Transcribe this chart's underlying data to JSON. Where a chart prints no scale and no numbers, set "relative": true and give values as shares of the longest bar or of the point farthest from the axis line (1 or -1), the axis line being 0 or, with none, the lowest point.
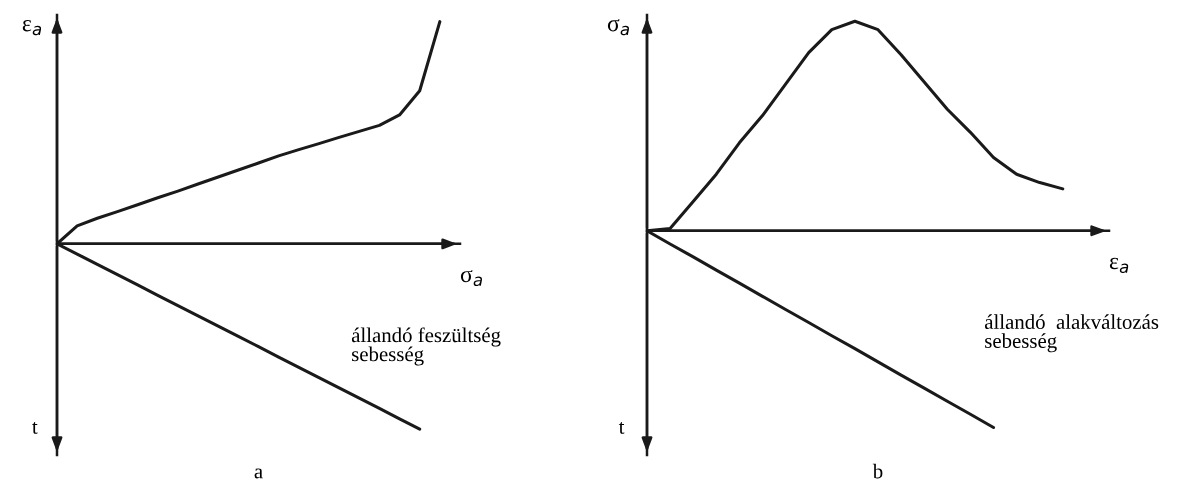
{
  "chart_data": [
    {
      "type": "line",
      "relative": true,
      "title": "a",
      "xlabel": "σ$_{a}$",
      "ylabel": "ε$_{a}$",
      "annotations": [
        "t",
        "állandó feszültség\nsebesség"
      ],
      "categories": [
        null,
        null,
        null,
        null,
        null,
        null,
        null,
        null,
        null,
        null,
        null,
        null,
        null,
        null,
        null,
        null,
        null,
        null,
        null,
        null,
        null
      ],
      "series": [
        {
          "color": "#1a1a1a",
          "values": [
            0,
            0.081,
            0.115,
            0.145,
            0.176,
            0.207,
            0.237,
            0.269,
            0.301,
            0.332,
            0.364,
            0.396,
            0.424,
            0.451,
            0.479,
            0.506,
            0.533,
            0.58,
            0.689,
            1,
            null
          ]
        },
        {
          "color": "#1a1a1a",
          "values": [
            0,
            -0.046,
            -0.093,
            -0.139,
            -0.185,
            -0.232,
            -0.278,
            -0.324,
            -0.371,
            -0.417,
            -0.463,
            -0.51,
            -0.556,
            -0.602,
            -0.649,
            -0.695,
            -0.741,
            -0.788,
            -0.834,
            null,
            null
          ]
        }
      ]
    },
    {
      "type": "line",
      "relative": true,
      "title": "b",
      "xlabel": "ε$_{a}$",
      "ylabel": "σ$_{a}$",
      "annotations": [
        "t",
        "állandó  alakváltozás\nsebesség"
      ],
      "categories": [
        null,
        null,
        null,
        null,
        null,
        null,
        null,
        null,
        null,
        null,
        null,
        null,
        null,
        null,
        null,
        null,
        null,
        null,
        null,
        null,
        null
      ],
      "series": [
        {
          "color": "#1a1a1a",
          "values": [
            0,
            0.011,
            0.14,
            0.27,
            0.42,
            0.55,
            0.7,
            0.85,
            0.96,
            1,
            0.96,
            0.84,
            0.71,
            0.58,
            0.47,
            0.35,
            0.27,
            0.23,
            0.2,
            null,
            null
          ]
        },
        {
          "color": "#1a1a1a",
          "values": [
            0,
            -0.063,
            -0.125,
            -0.188,
            -0.25,
            -0.313,
            -0.376,
            -0.438,
            -0.501,
            -0.563,
            -0.626,
            -0.689,
            -0.751,
            -0.814,
            -0.876,
            -0.939,
            null,
            null,
            null,
            null,
            null
          ]
        }
      ]
    }
  ]
}
